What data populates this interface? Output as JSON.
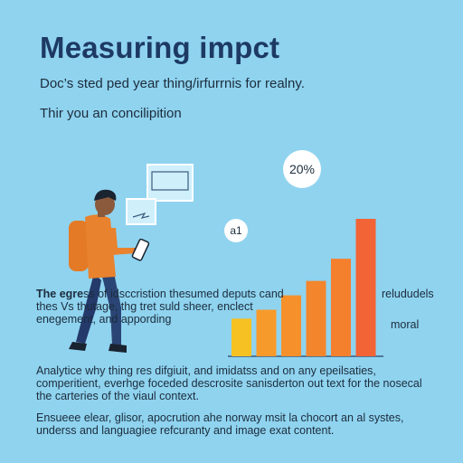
{
  "heading": {
    "title": "Measuring impct",
    "subtitle": "Doc’s sted ped year thing/irfurrnis for realny.",
    "line3": "Thir you an concilipition"
  },
  "callouts": {
    "percent_badge": "20%",
    "small_badge": "a1"
  },
  "body_text": {
    "p1_lead": "The egre",
    "p1_rest": "ss of idsccristion thesumed deputs cand thes Vs thutage, thg tret suld sheer, enclect enegement, and appording",
    "right_fragment_1": "relududels",
    "right_fragment_2": "moral",
    "p2": "Analytice why thing res difgiuit, and imidatss and on any epeilsaties, comperitient, everhge foceded descrosite sanisderton out text for the nosecal the carteries of the viaul context.",
    "p3": "Ensueee elear, glisor, apocrution ahe norway msit la chocort an al systes, underss and languagiee refcuranty and image exat content."
  },
  "chart_data": {
    "type": "bar",
    "values": [
      34,
      42,
      55,
      68,
      88,
      124
    ],
    "colors": [
      "#f5c123",
      "#f79a2c",
      "#f5902b",
      "#f3852d",
      "#f4802e",
      "#f26335"
    ]
  },
  "colors": {
    "background": "#8fd3ef",
    "title": "#1d3a63",
    "person_shirt": "#e8822e",
    "person_pants": "#243a6b"
  }
}
